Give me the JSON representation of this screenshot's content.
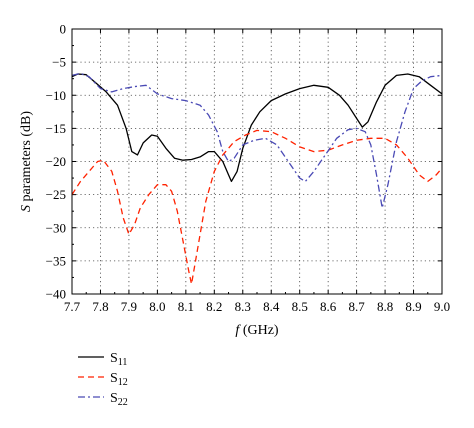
{
  "chart_data": {
    "type": "line",
    "xlabel": {
      "symbol": "f",
      "unit": " (GHz)"
    },
    "ylabel": {
      "symbol": "S",
      "rest": " parameters (dB)"
    },
    "xlim": [
      7.7,
      9.0
    ],
    "ylim": [
      -40,
      0
    ],
    "xticks": [
      "7.7",
      "7.8",
      "7.9",
      "8.0",
      "8.1",
      "8.2",
      "8.3",
      "8.4",
      "8.5",
      "8.6",
      "8.7",
      "8.8",
      "8.9",
      "9.0"
    ],
    "yticks": [
      "0",
      "−5",
      "−10",
      "−15",
      "−20",
      "−25",
      "−30",
      "−35",
      "−40"
    ],
    "grid": true,
    "legend_position": "bottom-left",
    "series": [
      {
        "name": "S",
        "sub": "11",
        "color": "#000000",
        "dash": "solid",
        "points": [
          [
            7.7,
            -7.2
          ],
          [
            7.72,
            -6.8
          ],
          [
            7.75,
            -6.9
          ],
          [
            7.78,
            -8.0
          ],
          [
            7.82,
            -9.5
          ],
          [
            7.86,
            -11.5
          ],
          [
            7.89,
            -15.0
          ],
          [
            7.91,
            -18.5
          ],
          [
            7.93,
            -19.0
          ],
          [
            7.95,
            -17.2
          ],
          [
            7.98,
            -16.0
          ],
          [
            8.0,
            -16.2
          ],
          [
            8.03,
            -18.0
          ],
          [
            8.06,
            -19.5
          ],
          [
            8.09,
            -19.8
          ],
          [
            8.12,
            -19.7
          ],
          [
            8.15,
            -19.3
          ],
          [
            8.18,
            -18.5
          ],
          [
            8.2,
            -18.5
          ],
          [
            8.23,
            -20.0
          ],
          [
            8.25,
            -22.0
          ],
          [
            8.26,
            -23.0
          ],
          [
            8.28,
            -21.5
          ],
          [
            8.3,
            -18.0
          ],
          [
            8.33,
            -14.5
          ],
          [
            8.36,
            -12.5
          ],
          [
            8.4,
            -10.8
          ],
          [
            8.45,
            -9.8
          ],
          [
            8.5,
            -9.0
          ],
          [
            8.55,
            -8.5
          ],
          [
            8.6,
            -8.8
          ],
          [
            8.64,
            -10.0
          ],
          [
            8.67,
            -11.5
          ],
          [
            8.7,
            -13.5
          ],
          [
            8.72,
            -14.8
          ],
          [
            8.74,
            -14.0
          ],
          [
            8.77,
            -11.0
          ],
          [
            8.8,
            -8.5
          ],
          [
            8.84,
            -7.0
          ],
          [
            8.88,
            -6.8
          ],
          [
            8.92,
            -7.2
          ],
          [
            8.96,
            -8.5
          ],
          [
            9.0,
            -9.8
          ]
        ]
      },
      {
        "name": "S",
        "sub": "12",
        "color": "#ff2200",
        "dash": "dashed",
        "points": [
          [
            7.7,
            -25.0
          ],
          [
            7.73,
            -23.0
          ],
          [
            7.76,
            -21.5
          ],
          [
            7.79,
            -20.0
          ],
          [
            7.81,
            -19.8
          ],
          [
            7.84,
            -21.5
          ],
          [
            7.86,
            -24.5
          ],
          [
            7.88,
            -28.5
          ],
          [
            7.9,
            -31.0
          ],
          [
            7.92,
            -29.5
          ],
          [
            7.94,
            -27.0
          ],
          [
            7.97,
            -25.0
          ],
          [
            8.0,
            -23.5
          ],
          [
            8.03,
            -23.5
          ],
          [
            8.05,
            -24.5
          ],
          [
            8.07,
            -27.5
          ],
          [
            8.09,
            -32.0
          ],
          [
            8.11,
            -36.5
          ],
          [
            8.12,
            -38.5
          ],
          [
            8.13,
            -36.0
          ],
          [
            8.15,
            -31.0
          ],
          [
            8.17,
            -26.0
          ],
          [
            8.2,
            -21.5
          ],
          [
            8.23,
            -19.0
          ],
          [
            8.27,
            -17.0
          ],
          [
            8.31,
            -16.0
          ],
          [
            8.35,
            -15.3
          ],
          [
            8.4,
            -15.5
          ],
          [
            8.45,
            -16.5
          ],
          [
            8.5,
            -17.8
          ],
          [
            8.55,
            -18.5
          ],
          [
            8.6,
            -18.3
          ],
          [
            8.65,
            -17.5
          ],
          [
            8.7,
            -16.8
          ],
          [
            8.75,
            -16.5
          ],
          [
            8.8,
            -16.5
          ],
          [
            8.84,
            -17.5
          ],
          [
            8.88,
            -19.5
          ],
          [
            8.92,
            -22.0
          ],
          [
            8.95,
            -23.0
          ],
          [
            8.98,
            -22.0
          ],
          [
            9.0,
            -21.0
          ]
        ]
      },
      {
        "name": "S",
        "sub": "22",
        "color": "#4a4ab5",
        "dash": "dashdot",
        "points": [
          [
            7.7,
            -7.0
          ],
          [
            7.73,
            -6.7
          ],
          [
            7.76,
            -7.2
          ],
          [
            7.8,
            -9.0
          ],
          [
            7.84,
            -9.5
          ],
          [
            7.88,
            -9.0
          ],
          [
            7.92,
            -8.7
          ],
          [
            7.96,
            -8.5
          ],
          [
            8.0,
            -9.8
          ],
          [
            8.05,
            -10.5
          ],
          [
            8.1,
            -10.8
          ],
          [
            8.15,
            -11.5
          ],
          [
            8.18,
            -13.0
          ],
          [
            8.21,
            -15.5
          ],
          [
            8.23,
            -18.5
          ],
          [
            8.25,
            -20.0
          ],
          [
            8.27,
            -19.5
          ],
          [
            8.3,
            -17.5
          ],
          [
            8.34,
            -16.8
          ],
          [
            8.38,
            -16.5
          ],
          [
            8.42,
            -17.5
          ],
          [
            8.46,
            -20.0
          ],
          [
            8.5,
            -22.5
          ],
          [
            8.52,
            -23.0
          ],
          [
            8.55,
            -21.5
          ],
          [
            8.59,
            -19.0
          ],
          [
            8.63,
            -16.5
          ],
          [
            8.67,
            -15.2
          ],
          [
            8.7,
            -15.0
          ],
          [
            8.73,
            -15.5
          ],
          [
            8.75,
            -17.5
          ],
          [
            8.77,
            -22.0
          ],
          [
            8.79,
            -27.0
          ],
          [
            8.81,
            -23.5
          ],
          [
            8.84,
            -17.0
          ],
          [
            8.87,
            -12.5
          ],
          [
            8.9,
            -9.0
          ],
          [
            8.93,
            -7.8
          ],
          [
            8.96,
            -7.2
          ],
          [
            9.0,
            -7.0
          ]
        ]
      }
    ]
  }
}
